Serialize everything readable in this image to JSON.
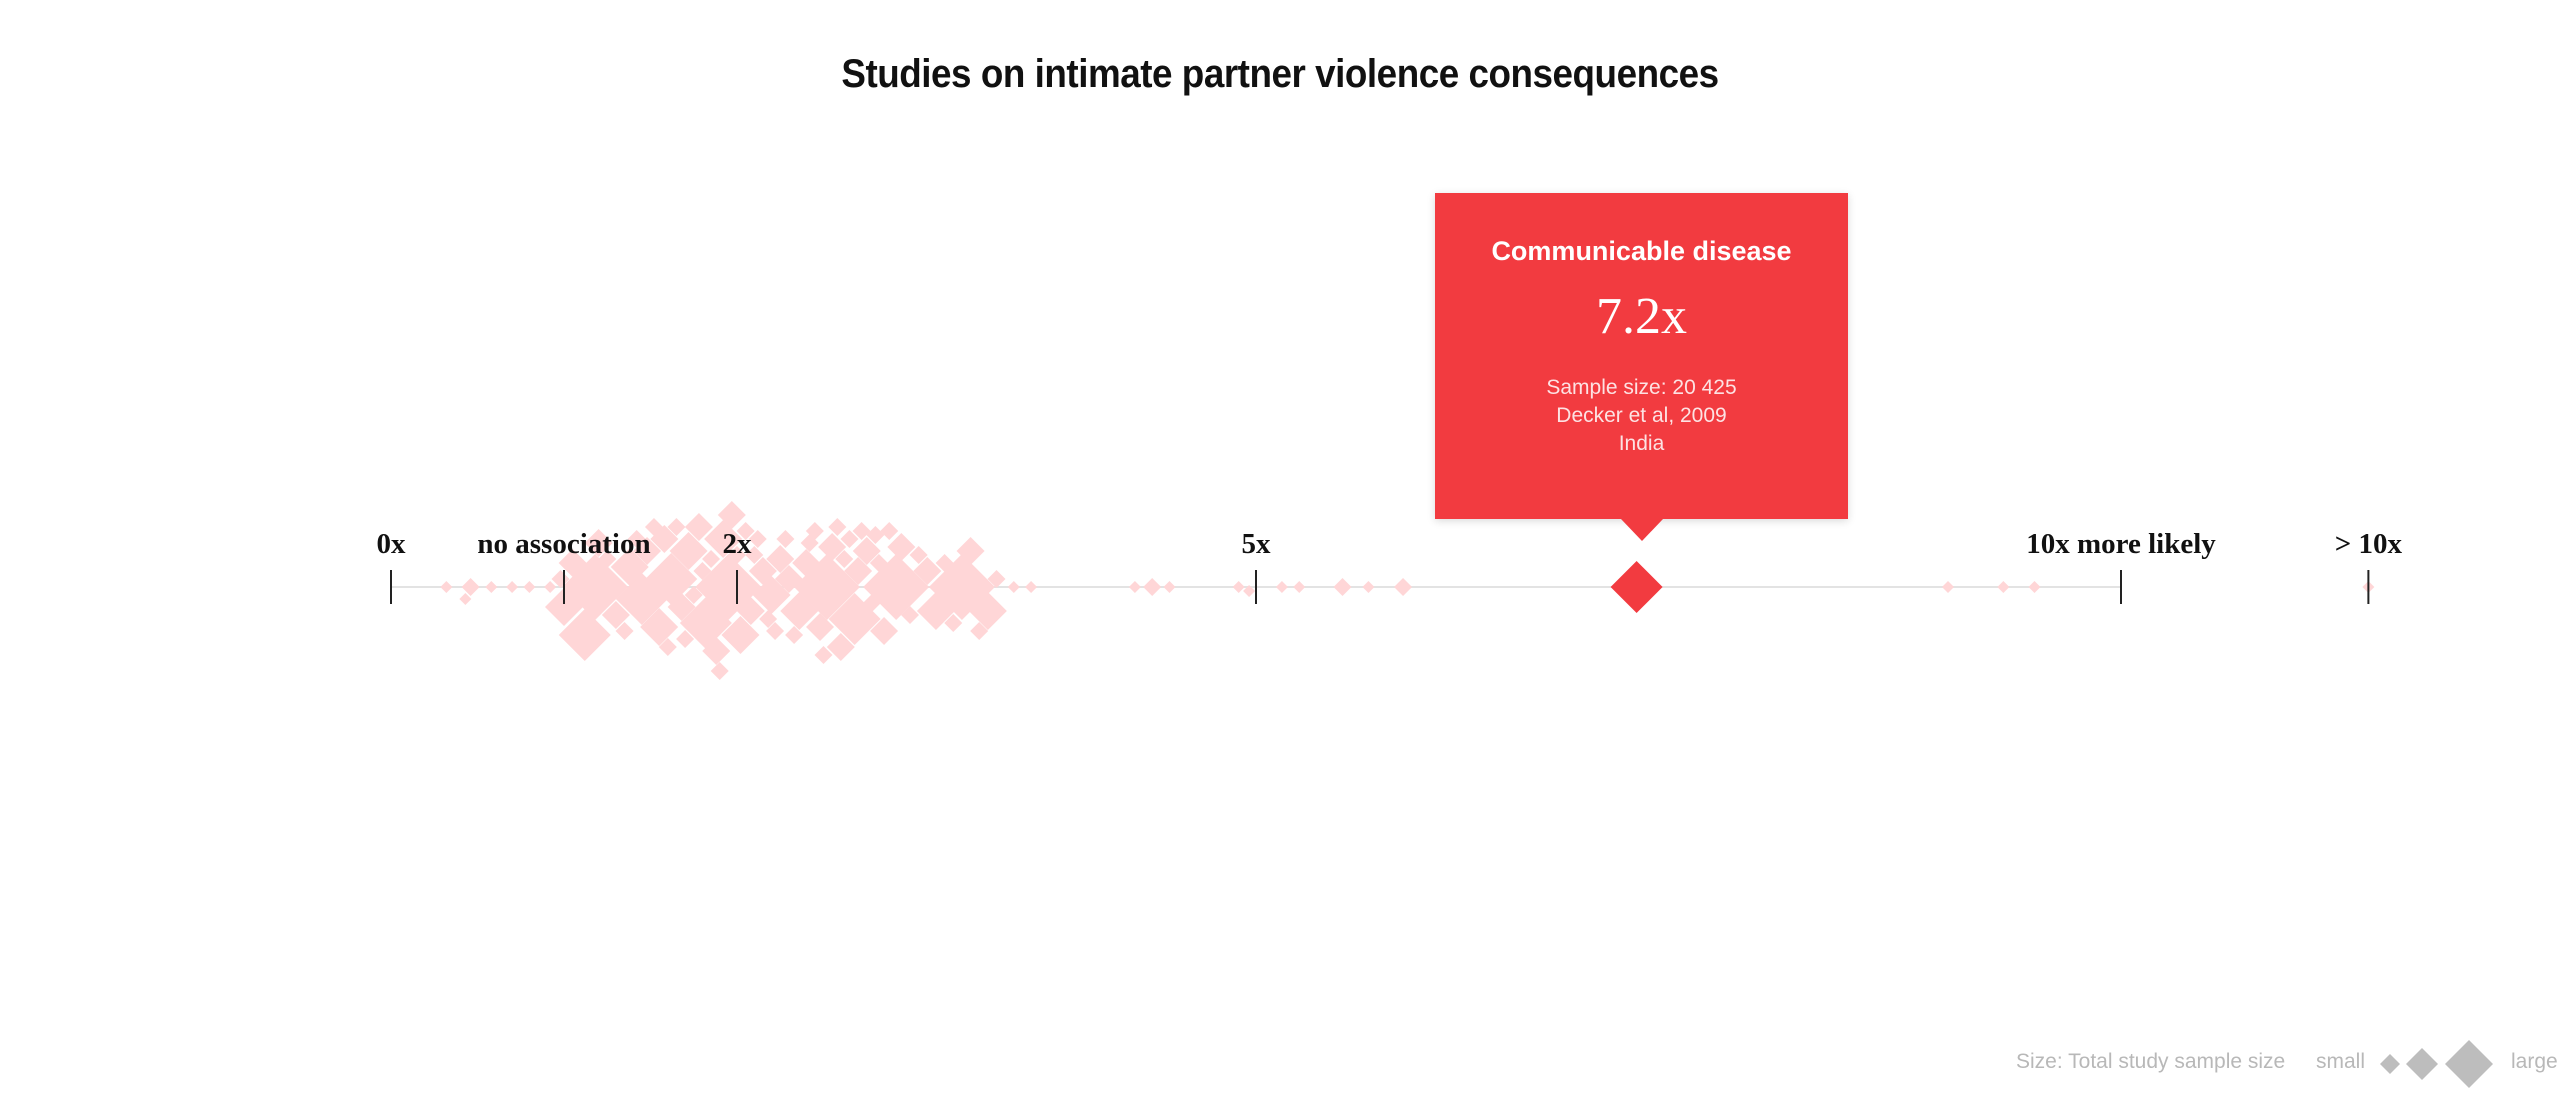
{
  "title": "Studies on intimate partner violence consequences",
  "colors": {
    "point": "#ffd6d7",
    "highlight": "#f23b40",
    "axis": "#e3e3e3",
    "tick": "#222222",
    "legend": "#b8b8b8"
  },
  "tooltip": {
    "title": "Communicable disease",
    "value": "7.2x",
    "sample_size": "Sample size: 20 425",
    "citation": "Decker et al, 2009",
    "country": "India"
  },
  "legend": {
    "label": "Size: Total study sample size",
    "small": "small",
    "large": "large"
  },
  "chart_data": {
    "type": "scatter",
    "title": "Studies on intimate partner violence consequences",
    "x_axis": {
      "ticks": [
        {
          "value": 0,
          "label": "0x"
        },
        {
          "value": 1,
          "label": "no association"
        },
        {
          "value": 2,
          "label": "2x"
        },
        {
          "value": 5,
          "label": "5x"
        },
        {
          "value": 10,
          "label": "10x more likely"
        },
        {
          "value": 11.43,
          "label": "> 10x"
        }
      ],
      "range": [
        0,
        10
      ],
      "overflow_label": "> 10x"
    },
    "size_encoding": "Total study sample size",
    "highlighted": {
      "label": "Communicable disease",
      "value": 7.2,
      "sample_size": 20425,
      "citation": "Decker et al, 2009",
      "country": "India"
    },
    "points": [
      {
        "x": 0.32,
        "s": 1
      },
      {
        "x": 0.43,
        "s": 1
      },
      {
        "x": 0.46,
        "s": 2
      },
      {
        "x": 0.58,
        "s": 1
      },
      {
        "x": 0.7,
        "s": 1
      },
      {
        "x": 0.8,
        "s": 1
      },
      {
        "x": 0.92,
        "s": 1
      },
      {
        "x": 0.98,
        "s": 2
      },
      {
        "x": 1.0,
        "s": 4
      },
      {
        "x": 1.05,
        "s": 3
      },
      {
        "x": 1.12,
        "s": 5
      },
      {
        "x": 1.18,
        "s": 6
      },
      {
        "x": 1.2,
        "s": 3
      },
      {
        "x": 1.25,
        "s": 2
      },
      {
        "x": 1.3,
        "s": 3
      },
      {
        "x": 1.35,
        "s": 2
      },
      {
        "x": 1.38,
        "s": 4
      },
      {
        "x": 1.42,
        "s": 2
      },
      {
        "x": 1.45,
        "s": 5
      },
      {
        "x": 1.48,
        "s": 3
      },
      {
        "x": 1.52,
        "s": 2
      },
      {
        "x": 1.55,
        "s": 4
      },
      {
        "x": 1.58,
        "s": 3
      },
      {
        "x": 1.6,
        "s": 2
      },
      {
        "x": 1.62,
        "s": 5
      },
      {
        "x": 1.65,
        "s": 2
      },
      {
        "x": 1.68,
        "s": 3
      },
      {
        "x": 1.7,
        "s": 2
      },
      {
        "x": 1.72,
        "s": 4
      },
      {
        "x": 1.75,
        "s": 2
      },
      {
        "x": 1.78,
        "s": 3
      },
      {
        "x": 1.8,
        "s": 2
      },
      {
        "x": 1.82,
        "s": 5
      },
      {
        "x": 1.85,
        "s": 2
      },
      {
        "x": 1.88,
        "s": 3
      },
      {
        "x": 1.9,
        "s": 2
      },
      {
        "x": 1.92,
        "s": 4
      },
      {
        "x": 1.95,
        "s": 6
      },
      {
        "x": 1.97,
        "s": 3
      },
      {
        "x": 2.0,
        "s": 2
      },
      {
        "x": 2.02,
        "s": 4
      },
      {
        "x": 2.05,
        "s": 2
      },
      {
        "x": 2.08,
        "s": 3
      },
      {
        "x": 2.1,
        "s": 2
      },
      {
        "x": 2.12,
        "s": 2
      },
      {
        "x": 2.15,
        "s": 3
      },
      {
        "x": 2.18,
        "s": 2
      },
      {
        "x": 2.2,
        "s": 4
      },
      {
        "x": 2.22,
        "s": 2
      },
      {
        "x": 2.25,
        "s": 3
      },
      {
        "x": 2.28,
        "s": 2
      },
      {
        "x": 2.3,
        "s": 3
      },
      {
        "x": 2.33,
        "s": 2
      },
      {
        "x": 2.36,
        "s": 4
      },
      {
        "x": 2.4,
        "s": 3
      },
      {
        "x": 2.42,
        "s": 2
      },
      {
        "x": 2.45,
        "s": 2
      },
      {
        "x": 2.48,
        "s": 3
      },
      {
        "x": 2.5,
        "s": 2
      },
      {
        "x": 2.52,
        "s": 6
      },
      {
        "x": 2.55,
        "s": 3
      },
      {
        "x": 2.58,
        "s": 2
      },
      {
        "x": 2.6,
        "s": 3
      },
      {
        "x": 2.62,
        "s": 2
      },
      {
        "x": 2.65,
        "s": 2
      },
      {
        "x": 2.68,
        "s": 5
      },
      {
        "x": 2.7,
        "s": 3
      },
      {
        "x": 2.72,
        "s": 2
      },
      {
        "x": 2.75,
        "s": 3
      },
      {
        "x": 2.78,
        "s": 2
      },
      {
        "x": 2.8,
        "s": 2
      },
      {
        "x": 2.82,
        "s": 2
      },
      {
        "x": 2.85,
        "s": 3
      },
      {
        "x": 2.88,
        "s": 2
      },
      {
        "x": 2.92,
        "s": 6
      },
      {
        "x": 2.95,
        "s": 3
      },
      {
        "x": 3.0,
        "s": 2
      },
      {
        "x": 3.05,
        "s": 2
      },
      {
        "x": 3.1,
        "s": 3
      },
      {
        "x": 3.15,
        "s": 4
      },
      {
        "x": 3.2,
        "s": 2
      },
      {
        "x": 3.25,
        "s": 2
      },
      {
        "x": 3.3,
        "s": 6
      },
      {
        "x": 3.35,
        "s": 3
      },
      {
        "x": 3.4,
        "s": 2
      },
      {
        "x": 3.45,
        "s": 4
      },
      {
        "x": 3.5,
        "s": 2
      },
      {
        "x": 3.6,
        "s": 1
      },
      {
        "x": 3.7,
        "s": 1
      },
      {
        "x": 4.3,
        "s": 1
      },
      {
        "x": 4.4,
        "s": 2
      },
      {
        "x": 4.5,
        "s": 1
      },
      {
        "x": 4.9,
        "s": 1
      },
      {
        "x": 4.96,
        "s": 1
      },
      {
        "x": 5.15,
        "s": 1
      },
      {
        "x": 5.25,
        "s": 1
      },
      {
        "x": 5.5,
        "s": 2
      },
      {
        "x": 5.65,
        "s": 1
      },
      {
        "x": 5.85,
        "s": 2
      },
      {
        "x": 9.0,
        "s": 1
      },
      {
        "x": 9.32,
        "s": 1
      },
      {
        "x": 9.5,
        "s": 1
      },
      {
        "x": 11.43,
        "s": 1
      }
    ]
  }
}
